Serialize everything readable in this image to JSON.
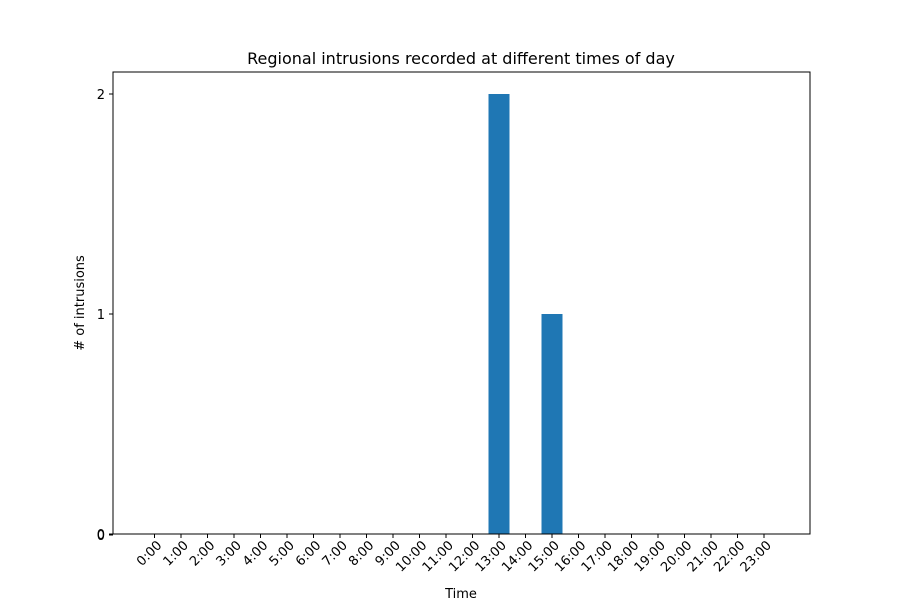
{
  "chart_data": {
    "type": "bar",
    "title": "Regional intrusions recorded at different times of day",
    "xlabel": "Time",
    "ylabel": "# of intrusions",
    "categories": [
      "0:00",
      "1:00",
      "2:00",
      "3:00",
      "4:00",
      "5:00",
      "6:00",
      "7:00",
      "8:00",
      "9:00",
      "10:00",
      "11:00",
      "12:00",
      "13:00",
      "14:00",
      "15:00",
      "16:00",
      "17:00",
      "18:00",
      "19:00",
      "20:00",
      "21:00",
      "22:00",
      "23:00"
    ],
    "values": [
      0,
      0,
      0,
      0,
      0,
      0,
      0,
      0,
      0,
      0,
      0,
      0,
      0,
      2,
      0,
      1,
      0,
      0,
      0,
      0,
      0,
      0,
      0,
      0
    ],
    "ylim": [
      0,
      2.1
    ],
    "yticks": [
      0,
      1,
      2
    ],
    "yticks_extra_label": "0",
    "grid": false,
    "bar_color": "#1f77b4"
  }
}
